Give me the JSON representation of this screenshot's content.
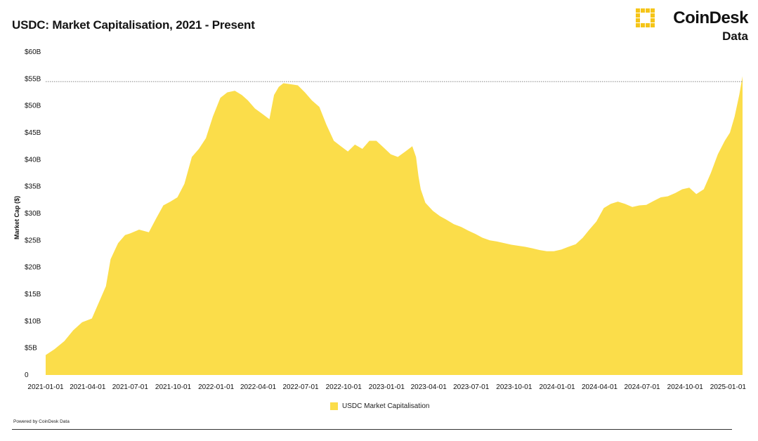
{
  "title": "USDC: Market Capitalisation, 2021 - Present",
  "brand": {
    "name": "CoinDesk",
    "sub": "Data",
    "accent": "#f5c518"
  },
  "footer": {
    "powered_by": "Powered by CoinDesk Data"
  },
  "chart_data": {
    "type": "area",
    "title": "USDC: Market Capitalisation, 2021 - Present",
    "ylabel": "Market Cap ($)",
    "xlabel": "",
    "color": "#fbdd4a",
    "ylim": [
      0,
      60
    ],
    "y_ticks": [
      "0",
      "$5B",
      "$10B",
      "$15B",
      "$20B",
      "$25B",
      "$30B",
      "$35B",
      "$40B",
      "$45B",
      "$50B",
      "$55B",
      "$60B"
    ],
    "x_ticks": [
      "2021-01-01",
      "2021-04-01",
      "2021-07-01",
      "2021-10-01",
      "2022-01-01",
      "2022-04-01",
      "2022-07-01",
      "2022-10-01",
      "2023-01-01",
      "2023-04-01",
      "2023-07-01",
      "2023-10-01",
      "2024-01-01",
      "2024-04-01",
      "2024-07-01",
      "2024-10-01",
      "2025-01-01"
    ],
    "reference_line": {
      "value": 54.5,
      "style": "dashed"
    },
    "legend": {
      "position": "bottom-center"
    },
    "series": [
      {
        "name": "USDC Market Capitalisation",
        "x": [
          "2021-01-01",
          "2021-01-20",
          "2021-02-10",
          "2021-03-01",
          "2021-03-20",
          "2021-04-10",
          "2021-04-25",
          "2021-05-10",
          "2021-05-20",
          "2021-05-28",
          "2021-06-05",
          "2021-06-20",
          "2021-07-01",
          "2021-07-20",
          "2021-08-10",
          "2021-08-25",
          "2021-09-10",
          "2021-09-25",
          "2021-10-10",
          "2021-10-25",
          "2021-11-10",
          "2021-11-25",
          "2021-12-10",
          "2021-12-25",
          "2022-01-10",
          "2022-01-25",
          "2022-02-10",
          "2022-02-25",
          "2022-03-10",
          "2022-03-25",
          "2022-04-10",
          "2022-04-25",
          "2022-05-05",
          "2022-05-15",
          "2022-05-25",
          "2022-06-10",
          "2022-06-25",
          "2022-07-10",
          "2022-07-25",
          "2022-08-10",
          "2022-08-25",
          "2022-09-10",
          "2022-09-25",
          "2022-10-10",
          "2022-10-25",
          "2022-11-10",
          "2022-11-25",
          "2022-12-10",
          "2022-12-25",
          "2023-01-10",
          "2023-01-25",
          "2023-02-10",
          "2023-02-25",
          "2023-03-05",
          "2023-03-10",
          "2023-03-15",
          "2023-03-25",
          "2023-04-10",
          "2023-04-25",
          "2023-05-10",
          "2023-05-25",
          "2023-06-10",
          "2023-06-25",
          "2023-07-10",
          "2023-07-25",
          "2023-08-10",
          "2023-08-25",
          "2023-09-10",
          "2023-09-25",
          "2023-10-10",
          "2023-10-25",
          "2023-11-10",
          "2023-11-25",
          "2023-12-10",
          "2023-12-25",
          "2024-01-10",
          "2024-01-25",
          "2024-02-10",
          "2024-02-25",
          "2024-03-10",
          "2024-03-25",
          "2024-04-10",
          "2024-04-25",
          "2024-05-10",
          "2024-05-25",
          "2024-06-10",
          "2024-06-25",
          "2024-07-10",
          "2024-07-25",
          "2024-08-10",
          "2024-08-25",
          "2024-09-10",
          "2024-09-25",
          "2024-10-10",
          "2024-10-25",
          "2024-11-10",
          "2024-11-25",
          "2024-12-10",
          "2024-12-25",
          "2025-01-05",
          "2025-01-15",
          "2025-01-25",
          "2025-02-01"
        ],
        "values": [
          3.7,
          4.8,
          6.3,
          8.3,
          9.8,
          10.5,
          13.5,
          16.5,
          21.5,
          23.0,
          24.5,
          26.0,
          26.3,
          27.0,
          26.5,
          29.0,
          31.5,
          32.2,
          33.0,
          35.5,
          40.5,
          42.0,
          44.0,
          48.0,
          51.5,
          52.5,
          52.8,
          52.0,
          51.0,
          49.5,
          48.5,
          47.5,
          52.0,
          53.5,
          54.2,
          54.0,
          53.8,
          52.5,
          51.0,
          49.8,
          46.5,
          43.5,
          42.5,
          41.5,
          42.8,
          42.0,
          43.5,
          43.5,
          42.3,
          41.0,
          40.5,
          41.5,
          42.5,
          40.5,
          37.0,
          34.5,
          32.0,
          30.5,
          29.5,
          28.8,
          28.0,
          27.5,
          26.8,
          26.2,
          25.5,
          25.0,
          24.8,
          24.5,
          24.2,
          24.0,
          23.8,
          23.5,
          23.2,
          23.0,
          23.0,
          23.3,
          23.8,
          24.3,
          25.5,
          27.0,
          28.5,
          31.0,
          31.8,
          32.2,
          31.8,
          31.2,
          31.5,
          31.6,
          32.3,
          33.0,
          33.2,
          33.8,
          34.5,
          34.8,
          33.6,
          34.5,
          37.5,
          41.0,
          43.5,
          45.0,
          48.0,
          52.0,
          55.5
        ]
      }
    ]
  }
}
